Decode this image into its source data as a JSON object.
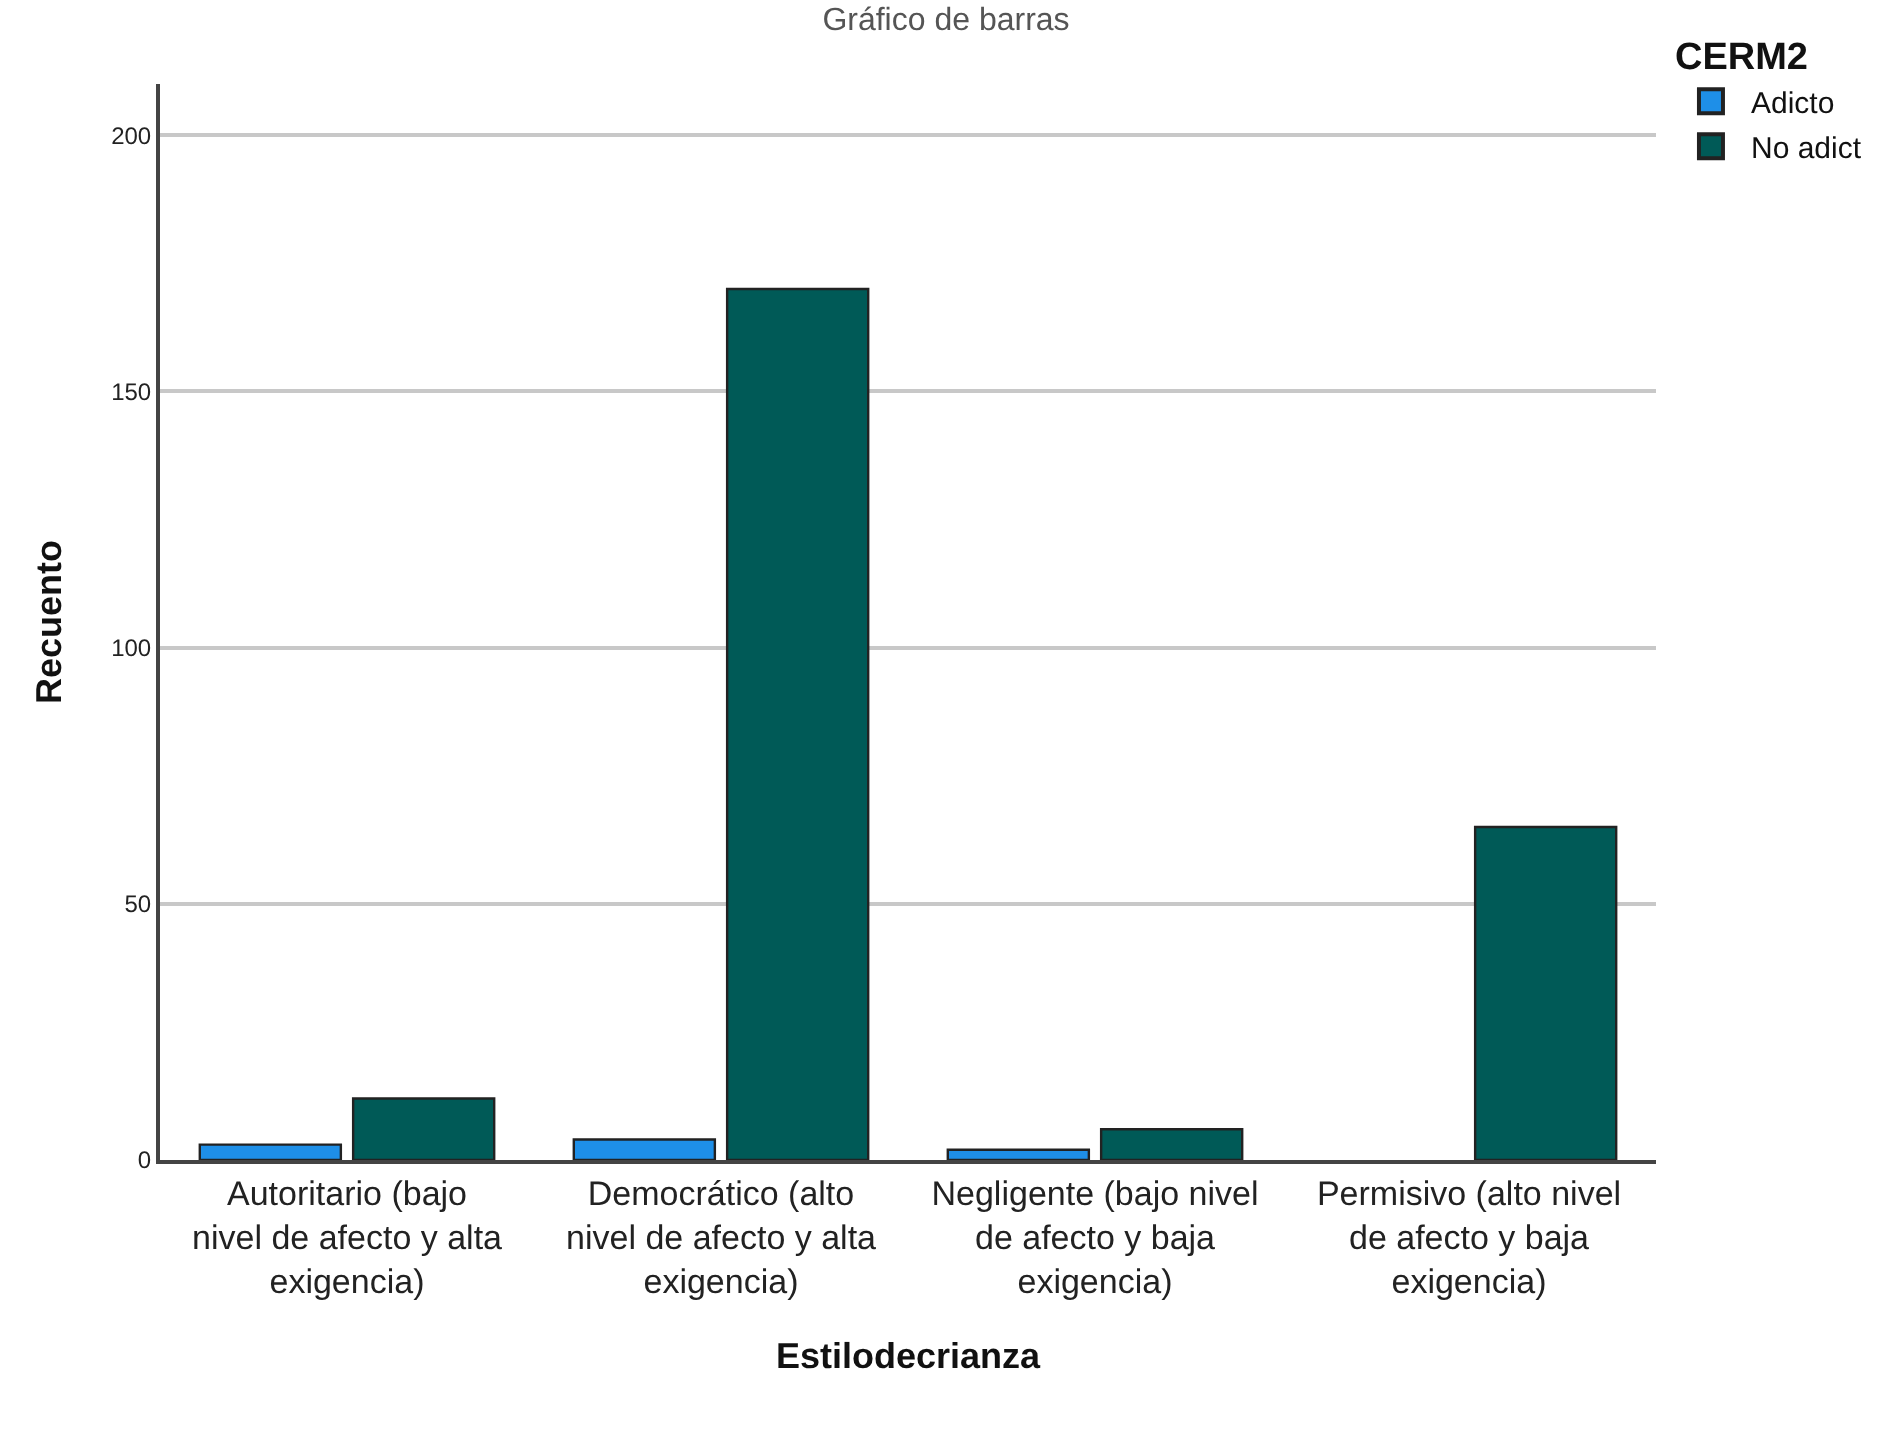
{
  "chart_data": {
    "type": "bar",
    "title": "Gráfico de barras",
    "xlabel": "Estilodecrianza",
    "ylabel": "Recuento",
    "legend_title": "CERM2",
    "categories": [
      "Autoritario (bajo nivel de afecto y alta exigencia)",
      "Democrático (alto nivel de afecto y alta exigencia)",
      "Negligente (bajo nivel de afecto y baja exigencia)",
      "Permisivo (alto nivel de afecto y baja exigencia)"
    ],
    "series": [
      {
        "name": "Adicto",
        "color": "#1e8fe8",
        "values": [
          3,
          4,
          2,
          null
        ]
      },
      {
        "name": "No adict",
        "color": "#005a57",
        "values": [
          12,
          170,
          6,
          65
        ]
      }
    ],
    "ylim": [
      0,
      210
    ],
    "yticks": [
      0,
      50,
      100,
      150,
      200
    ],
    "grid": "y",
    "legend": "top right"
  }
}
